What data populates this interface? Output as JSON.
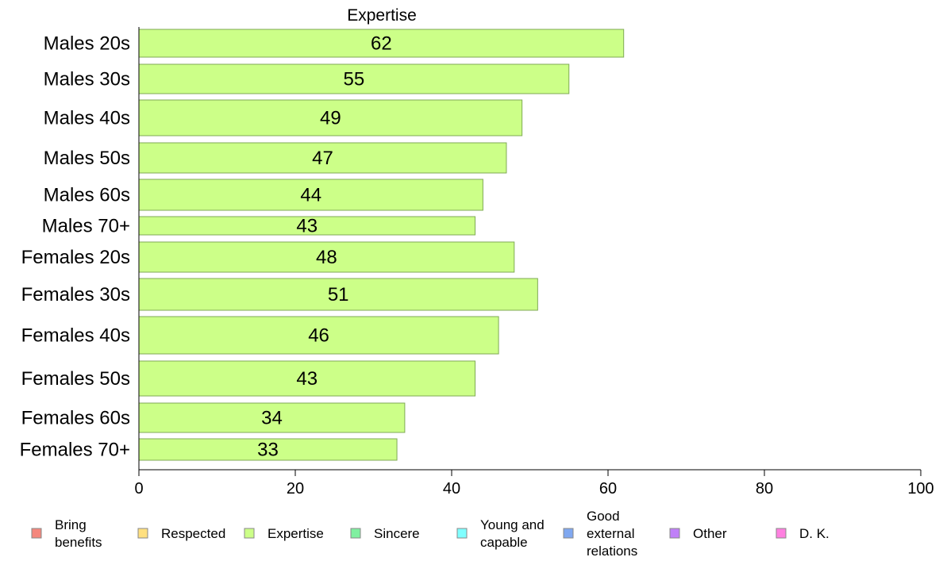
{
  "chart_data": {
    "type": "bar",
    "orientation": "horizontal",
    "title": "Expertise",
    "categories": [
      "Males 20s",
      "Males 30s",
      "Males 40s",
      "Males 50s",
      "Males 60s",
      "Males 70+",
      "Females 20s",
      "Females 30s",
      "Females 40s",
      "Females 50s",
      "Females 60s",
      "Females 70+"
    ],
    "values": [
      62,
      55,
      49,
      47,
      44,
      43,
      48,
      51,
      46,
      43,
      34,
      33
    ],
    "bar_color": "#ccff88",
    "xlim": [
      0,
      100
    ],
    "xticks": [
      0,
      20,
      40,
      60,
      80,
      100
    ],
    "grid": false,
    "legend_position": "bottom",
    "legend": [
      {
        "label": "Bring benefits",
        "lines": [
          "Bring",
          "benefits"
        ],
        "color": "#f4877d"
      },
      {
        "label": "Respected",
        "lines": [
          "Respected"
        ],
        "color": "#ffe080"
      },
      {
        "label": "Expertise",
        "lines": [
          "Expertise"
        ],
        "color": "#ccff88"
      },
      {
        "label": "Sincere",
        "lines": [
          "Sincere"
        ],
        "color": "#80f0a0"
      },
      {
        "label": "Young and capable",
        "lines": [
          "Young and",
          "capable"
        ],
        "color": "#80ffff"
      },
      {
        "label": "Good external relations",
        "lines": [
          "Good",
          "external",
          "relations"
        ],
        "color": "#80a8f0"
      },
      {
        "label": "Other",
        "lines": [
          "Other"
        ],
        "color": "#c080f8"
      },
      {
        "label": "D. K.",
        "lines": [
          "D. K."
        ],
        "color": "#ff80e0"
      }
    ]
  }
}
